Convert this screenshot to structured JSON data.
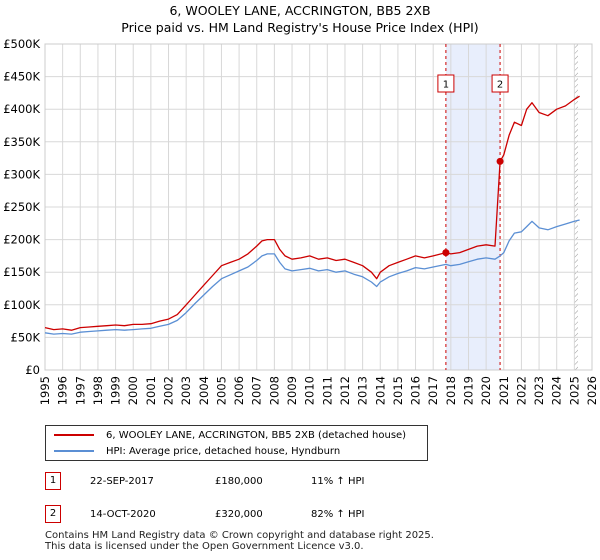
{
  "chart_data": {
    "type": "line",
    "title": "6, WOOLEY LANE, ACCRINGTON, BB5 2XB",
    "subtitle": "Price paid vs. HM Land Registry's House Price Index (HPI)",
    "xlim": [
      1995,
      2026
    ],
    "ylim": [
      0,
      500000
    ],
    "x_ticks": [
      "1995",
      "1996",
      "1997",
      "1998",
      "1999",
      "2000",
      "2001",
      "2002",
      "2003",
      "2004",
      "2005",
      "2006",
      "2007",
      "2008",
      "2009",
      "2010",
      "2011",
      "2012",
      "2013",
      "2014",
      "2015",
      "2016",
      "2017",
      "2018",
      "2019",
      "2020",
      "2021",
      "2022",
      "2023",
      "2024",
      "2025",
      "2026"
    ],
    "y_ticks": [
      {
        "value": 0,
        "label": "£0"
      },
      {
        "value": 50000,
        "label": "£50K"
      },
      {
        "value": 100000,
        "label": "£100K"
      },
      {
        "value": 150000,
        "label": "£150K"
      },
      {
        "value": 200000,
        "label": "£200K"
      },
      {
        "value": 250000,
        "label": "£250K"
      },
      {
        "value": 300000,
        "label": "£300K"
      },
      {
        "value": 350000,
        "label": "£350K"
      },
      {
        "value": 400000,
        "label": "£400K"
      },
      {
        "value": 450000,
        "label": "£450K"
      },
      {
        "value": 500000,
        "label": "£500K"
      }
    ],
    "grid": true,
    "shaded_span": [
      2017.72,
      2020.79
    ],
    "forecast_from": 2025.0,
    "series": [
      {
        "name": "6, WOOLEY LANE, ACCRINGTON, BB5 2XB (detached house)",
        "color": "#cc0000",
        "x": [
          1995.0,
          1995.5,
          1996.0,
          1996.5,
          1997.0,
          1997.5,
          1998.0,
          1998.5,
          1999.0,
          1999.5,
          2000.0,
          2000.5,
          2001.0,
          2001.5,
          2002.0,
          2002.5,
          2003.0,
          2003.5,
          2004.0,
          2004.5,
          2005.0,
          2005.5,
          2006.0,
          2006.5,
          2007.0,
          2007.3,
          2007.6,
          2008.0,
          2008.3,
          2008.6,
          2009.0,
          2009.5,
          2010.0,
          2010.5,
          2011.0,
          2011.5,
          2012.0,
          2012.5,
          2013.0,
          2013.5,
          2013.8,
          2014.0,
          2014.5,
          2015.0,
          2015.5,
          2016.0,
          2016.5,
          2017.0,
          2017.72,
          2018.0,
          2018.5,
          2019.0,
          2019.5,
          2020.0,
          2020.5,
          2020.79,
          2021.0,
          2021.3,
          2021.6,
          2022.0,
          2022.3,
          2022.6,
          2023.0,
          2023.5,
          2024.0,
          2024.5,
          2025.0,
          2025.3
        ],
        "values": [
          65000,
          62000,
          63000,
          61000,
          65000,
          66000,
          67000,
          68000,
          69000,
          68000,
          70000,
          70000,
          71000,
          75000,
          78000,
          85000,
          100000,
          115000,
          130000,
          145000,
          160000,
          165000,
          170000,
          178000,
          190000,
          198000,
          200000,
          200000,
          185000,
          175000,
          170000,
          172000,
          175000,
          170000,
          172000,
          168000,
          170000,
          165000,
          160000,
          150000,
          140000,
          150000,
          160000,
          165000,
          170000,
          175000,
          172000,
          175000,
          180000,
          178000,
          180000,
          185000,
          190000,
          192000,
          190000,
          320000,
          330000,
          360000,
          380000,
          375000,
          400000,
          410000,
          395000,
          390000,
          400000,
          405000,
          415000,
          420000
        ]
      },
      {
        "name": "HPI: Average price, detached house, Hyndburn",
        "color": "#5b8fd4",
        "x": [
          1995.0,
          1995.5,
          1996.0,
          1996.5,
          1997.0,
          1997.5,
          1998.0,
          1998.5,
          1999.0,
          1999.5,
          2000.0,
          2000.5,
          2001.0,
          2001.5,
          2002.0,
          2002.5,
          2003.0,
          2003.5,
          2004.0,
          2004.5,
          2005.0,
          2005.5,
          2006.0,
          2006.5,
          2007.0,
          2007.3,
          2007.6,
          2008.0,
          2008.3,
          2008.6,
          2009.0,
          2009.5,
          2010.0,
          2010.5,
          2011.0,
          2011.5,
          2012.0,
          2012.5,
          2013.0,
          2013.5,
          2013.8,
          2014.0,
          2014.5,
          2015.0,
          2015.5,
          2016.0,
          2016.5,
          2017.0,
          2017.72,
          2018.0,
          2018.5,
          2019.0,
          2019.5,
          2020.0,
          2020.5,
          2020.79,
          2021.0,
          2021.3,
          2021.6,
          2022.0,
          2022.3,
          2022.6,
          2023.0,
          2023.5,
          2024.0,
          2024.5,
          2025.0,
          2025.3
        ],
        "values": [
          57000,
          55000,
          56000,
          55000,
          58000,
          59000,
          60000,
          61000,
          62000,
          61000,
          62000,
          63000,
          64000,
          67000,
          70000,
          76000,
          88000,
          102000,
          115000,
          128000,
          140000,
          146000,
          152000,
          158000,
          168000,
          175000,
          178000,
          178000,
          165000,
          155000,
          152000,
          154000,
          156000,
          152000,
          154000,
          150000,
          152000,
          147000,
          143000,
          135000,
          128000,
          135000,
          143000,
          148000,
          152000,
          157000,
          155000,
          158000,
          162000,
          160000,
          162000,
          166000,
          170000,
          172000,
          170000,
          175000,
          180000,
          198000,
          210000,
          212000,
          220000,
          228000,
          218000,
          215000,
          220000,
          224000,
          228000,
          230000
        ]
      }
    ],
    "markers": [
      {
        "id": "1",
        "x": 2017.72,
        "y": 180000
      },
      {
        "id": "2",
        "x": 2020.79,
        "y": 320000
      }
    ]
  },
  "legend": {
    "property": "6, WOOLEY LANE, ACCRINGTON, BB5 2XB (detached house)",
    "hpi": "HPI: Average price, detached house, Hyndburn"
  },
  "transactions": [
    {
      "id": "1",
      "date": "22-SEP-2017",
      "price": "£180,000",
      "hpi": "11% ↑ HPI"
    },
    {
      "id": "2",
      "date": "14-OCT-2020",
      "price": "£320,000",
      "hpi": "82% ↑ HPI"
    }
  ],
  "footer": {
    "line1": "Contains HM Land Registry data © Crown copyright and database right 2025.",
    "line2": "This data is licensed under the Open Government Licence v3.0."
  },
  "colors": {
    "property": "#cc0000",
    "hpi": "#5b8fd4",
    "shade": "#e8eefc",
    "grid": "#d8d8d8"
  }
}
